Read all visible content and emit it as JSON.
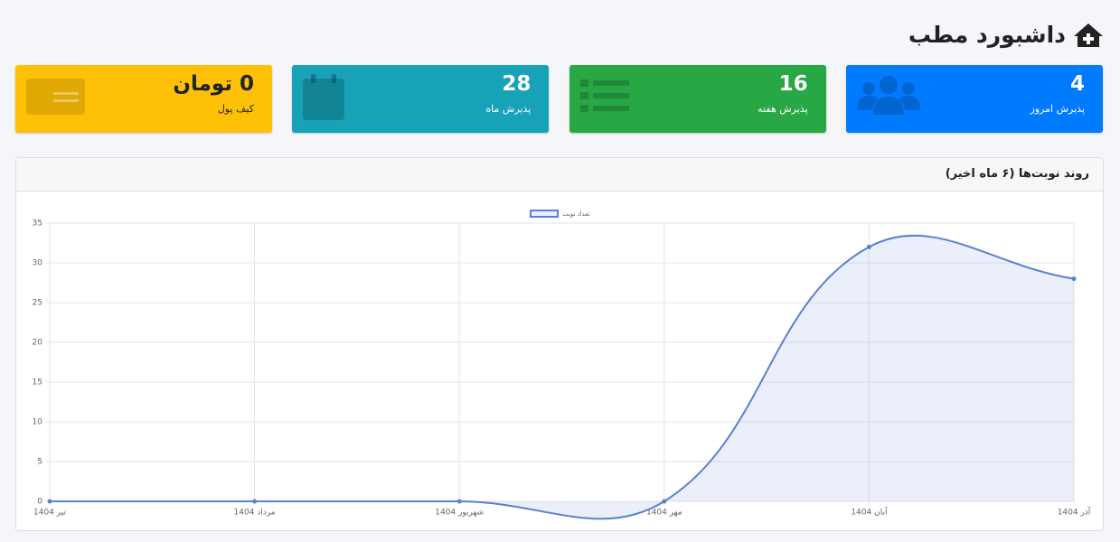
{
  "header": {
    "title": "داشبورد مطب"
  },
  "cards": [
    {
      "value": 4,
      "label": "پذیرش امروز"
    },
    {
      "value": 16,
      "label": "پذیرش هفته"
    },
    {
      "value": 28,
      "label": "پذیرش ماه"
    },
    {
      "value": "0 تومان",
      "label": "کیف پول"
    }
  ],
  "chart_panel": {
    "title": "روند نوبت‌ها (۶ ماه اخیر)"
  },
  "chart_data": {
    "type": "line",
    "categories": [
      "تیر 1404",
      "مرداد 1404",
      "شهریور 1404",
      "مهر 1404",
      "آبان 1404",
      "آذر 1404"
    ],
    "series": [
      {
        "name": "تعداد نوبت",
        "color": "#5b7fd6",
        "values": [
          0,
          0,
          0,
          0,
          32,
          28
        ]
      }
    ],
    "ylim": [
      0,
      35
    ],
    "yticks": [
      0,
      5,
      10,
      15,
      20,
      25,
      30,
      35
    ],
    "grid": true,
    "fill": true
  }
}
